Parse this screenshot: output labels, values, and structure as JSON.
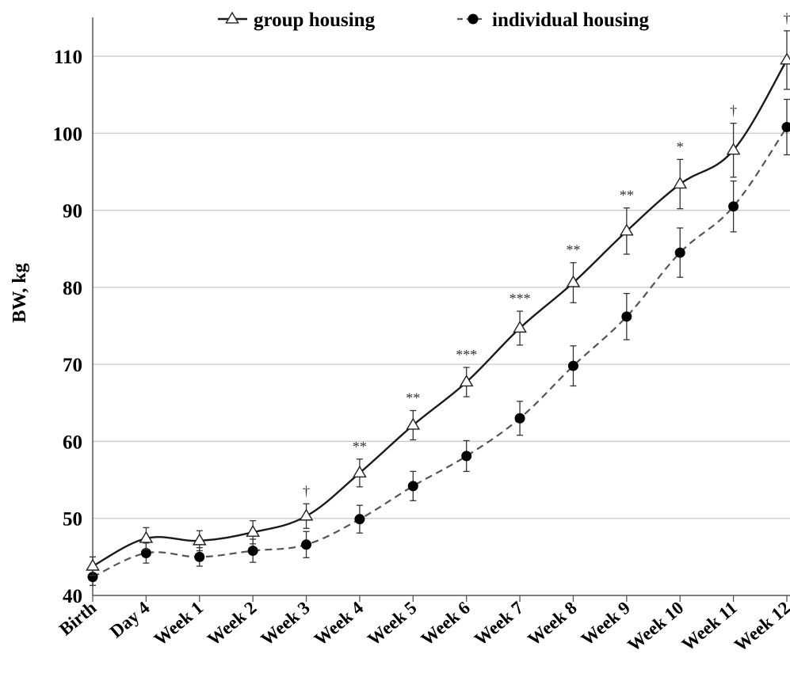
{
  "chart_data": {
    "type": "line",
    "title": "",
    "xlabel": "",
    "ylabel": "BW, kg",
    "ylim": [
      40,
      110
    ],
    "yticks": [
      40,
      50,
      60,
      70,
      80,
      90,
      100,
      110
    ],
    "grid": "horizontal",
    "legend_position": "top",
    "categories": [
      "Birth",
      "Day 4",
      "Week 1",
      "Week 2",
      "Week 3",
      "Week 4",
      "Week 5",
      "Week 6",
      "Week 7",
      "Week 8",
      "Week 9",
      "Week 10",
      "Week 11",
      "Week 12"
    ],
    "series": [
      {
        "name": "group housing",
        "marker": "open-triangle",
        "line": "solid",
        "color": "#1a1a1a",
        "values": [
          43.8,
          47.4,
          47.1,
          48.2,
          50.3,
          55.9,
          62.1,
          67.7,
          74.7,
          80.6,
          87.3,
          93.4,
          97.8,
          109.5
        ],
        "error": [
          1.2,
          1.4,
          1.3,
          1.5,
          1.6,
          1.8,
          1.9,
          1.9,
          2.2,
          2.6,
          3.0,
          3.2,
          3.5,
          3.8
        ]
      },
      {
        "name": "individual housing",
        "marker": "filled-circle",
        "line": "dashed",
        "color": "#555555",
        "values": [
          42.4,
          45.5,
          45.0,
          45.8,
          46.6,
          49.9,
          54.2,
          58.1,
          63.0,
          69.8,
          76.2,
          84.5,
          90.5,
          100.8
        ],
        "error": [
          1.1,
          1.3,
          1.2,
          1.5,
          1.7,
          1.8,
          1.9,
          2.0,
          2.2,
          2.6,
          3.0,
          3.2,
          3.3,
          3.6
        ]
      }
    ],
    "significance": [
      "",
      "",
      "",
      "",
      "†",
      "**",
      "**",
      "***",
      "***",
      "**",
      "**",
      "*",
      "†",
      "†"
    ]
  }
}
